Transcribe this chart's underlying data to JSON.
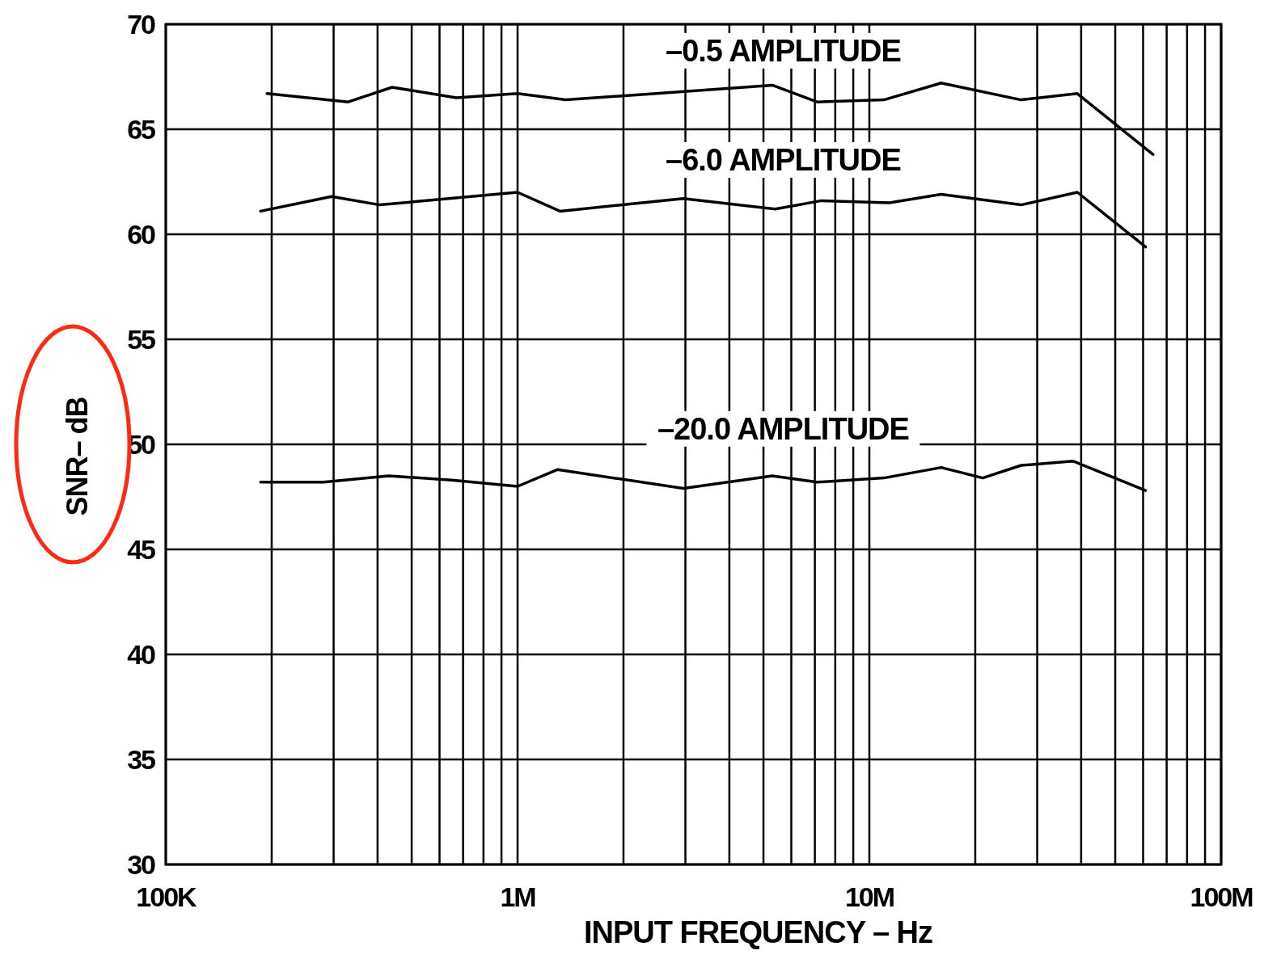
{
  "chart_data": {
    "type": "line",
    "xlabel": "INPUT FREQUENCY – Hz",
    "ylabel": "SNR– dB",
    "log": "x",
    "grid": true,
    "line_style": "solid",
    "marker": "none",
    "xlim": [
      100000,
      100000000
    ],
    "ylim": [
      30,
      70
    ],
    "xticks": [
      {
        "value": 100000,
        "label": "100K"
      },
      {
        "value": 200000,
        "label": null
      },
      {
        "value": 300000,
        "label": null
      },
      {
        "value": 400000,
        "label": null
      },
      {
        "value": 500000,
        "label": null
      },
      {
        "value": 600000,
        "label": null
      },
      {
        "value": 700000,
        "label": null
      },
      {
        "value": 800000,
        "label": null
      },
      {
        "value": 900000,
        "label": null
      },
      {
        "value": 1000000,
        "label": "1M"
      },
      {
        "value": 2000000,
        "label": null
      },
      {
        "value": 3000000,
        "label": null
      },
      {
        "value": 4000000,
        "label": null
      },
      {
        "value": 5000000,
        "label": null
      },
      {
        "value": 6000000,
        "label": null
      },
      {
        "value": 7000000,
        "label": null
      },
      {
        "value": 8000000,
        "label": null
      },
      {
        "value": 9000000,
        "label": null
      },
      {
        "value": 10000000,
        "label": "10M"
      },
      {
        "value": 20000000,
        "label": null
      },
      {
        "value": 30000000,
        "label": null
      },
      {
        "value": 40000000,
        "label": null
      },
      {
        "value": 50000000,
        "label": null
      },
      {
        "value": 60000000,
        "label": null
      },
      {
        "value": 70000000,
        "label": null
      },
      {
        "value": 80000000,
        "label": null
      },
      {
        "value": 90000000,
        "label": null
      },
      {
        "value": 100000000,
        "label": "100M"
      }
    ],
    "yticks": [
      30,
      35,
      40,
      45,
      50,
      55,
      60,
      65,
      70
    ],
    "series": [
      {
        "color": "#000000",
        "x": [
          194000,
          330000,
          440000,
          670000,
          1000000,
          1370000,
          5300000,
          7100000,
          11000000,
          16000000,
          27000000,
          39000000,
          64000000
        ],
        "values": [
          66.7,
          66.3,
          67.0,
          66.5,
          66.7,
          66.4,
          67.1,
          66.3,
          66.4,
          67.2,
          66.4,
          66.7,
          63.8
        ]
      },
      {
        "color": "#000000",
        "x": [
          186000,
          296000,
          406000,
          1000000,
          1320000,
          2960000,
          5400000,
          7300000,
          11400000,
          16000000,
          27000000,
          39000000,
          61000000
        ],
        "values": [
          61.1,
          61.8,
          61.4,
          62.0,
          61.1,
          61.7,
          61.2,
          61.6,
          61.5,
          61.9,
          61.4,
          62.0,
          59.4
        ]
      },
      {
        "color": "#000000",
        "x": [
          186000,
          281000,
          430000,
          650000,
          1000000,
          1300000,
          2960000,
          5300000,
          7100000,
          11000000,
          16000000,
          21000000,
          27000000,
          38000000,
          61000000
        ],
        "values": [
          48.2,
          48.2,
          48.5,
          48.3,
          48.0,
          48.8,
          47.9,
          48.5,
          48.2,
          48.4,
          48.9,
          48.4,
          49.0,
          49.2,
          47.8
        ]
      }
    ],
    "annotations": [
      "–0.5 AMPLITUDE",
      "–6.0 AMPLITUDE",
      "–20.0 AMPLITUDE"
    ]
  }
}
